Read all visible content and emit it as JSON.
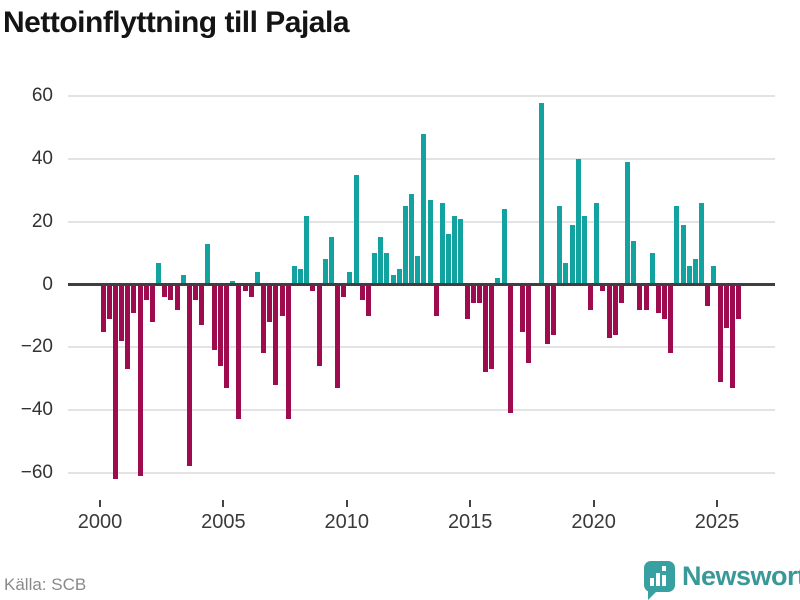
{
  "title": "Nettoinflyttning till Pajala",
  "source": "Källa: SCB",
  "branding": {
    "name": "Newsworthy",
    "logo_color": "#37a0a0",
    "text_color": "#3a9898"
  },
  "chart_data": {
    "type": "bar",
    "title": "Nettoinflyttning till Pajala",
    "frequency": "quarterly",
    "x_start": "2000Q1",
    "x_end": "2025Q4",
    "values": [
      -15,
      -11,
      -62,
      -18,
      -27,
      -9,
      -61,
      -5,
      -12,
      7,
      -4,
      -5,
      -8,
      3,
      -58,
      -5,
      -13,
      13,
      -21,
      -26,
      -33,
      1,
      -43,
      -2,
      -4,
      4,
      -22,
      -12,
      -32,
      -10,
      -43,
      6,
      5,
      22,
      -2,
      -26,
      8,
      15,
      -33,
      -4,
      4,
      35,
      -5,
      -10,
      10,
      15,
      10,
      3,
      5,
      25,
      29,
      9,
      48,
      27,
      -10,
      26,
      16,
      22,
      21,
      -11,
      -6,
      -6,
      -28,
      -27,
      2,
      24,
      -41,
      0,
      -15,
      -25,
      0,
      58,
      -19,
      -16,
      25,
      7,
      19,
      40,
      22,
      -8,
      26,
      -2,
      -17,
      -16,
      -6,
      39,
      14,
      -8,
      -8,
      10,
      -9,
      -11,
      -22,
      25,
      19,
      6,
      8,
      26,
      -7,
      6,
      -31,
      -14,
      -33,
      -11
    ],
    "positive_color": "#12a2a0",
    "negative_color": "#9e0b4f",
    "ylim": [
      -65,
      62
    ],
    "yticks": [
      60,
      40,
      20,
      0,
      -20,
      -40,
      -60
    ],
    "ytick_labels": [
      "60",
      "40",
      "20",
      "0",
      "−20",
      "−40",
      "−60"
    ],
    "xtick_years": [
      2000,
      2005,
      2010,
      2015,
      2020,
      2025
    ],
    "xtick_labels": [
      "2000",
      "2005",
      "2010",
      "2015",
      "2020",
      "2025"
    ],
    "grid": "horizontal",
    "legend": "none"
  }
}
